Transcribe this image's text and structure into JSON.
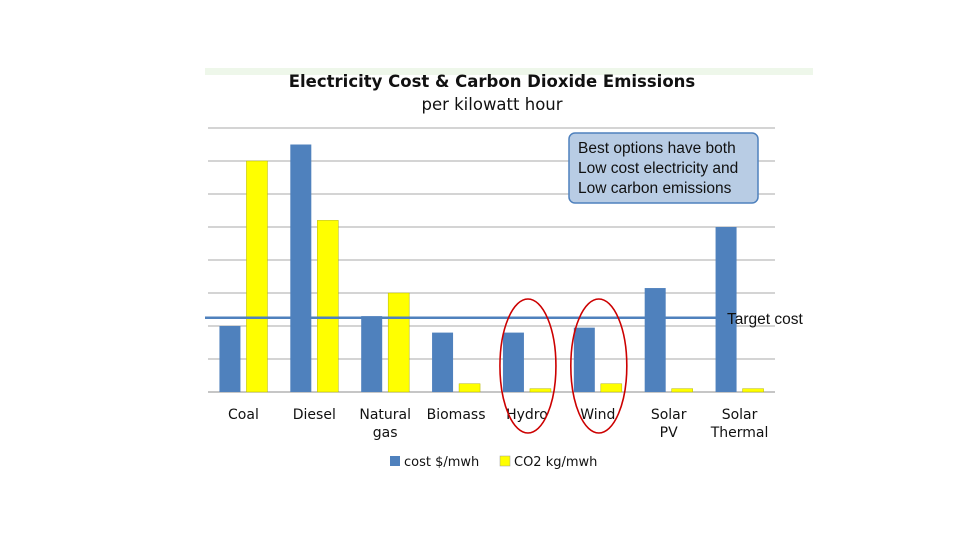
{
  "chart_data": {
    "type": "bar",
    "title": "Electricity Cost & Carbon Dioxide Emissions",
    "subtitle": "per kilowatt hour",
    "categories": [
      "Coal",
      "Diesel",
      "Natural gas",
      "Biomass",
      "Hydro",
      "Wind",
      "Solar PV",
      "Solar Thermal"
    ],
    "series": [
      {
        "name": "cost $/mwh",
        "color": "#4f81bd",
        "values": [
          20,
          75,
          23,
          18,
          18,
          19.5,
          31.5,
          50
        ]
      },
      {
        "name": "CO2 kg/mwh",
        "color": "#ffff00",
        "values": [
          70,
          52,
          30,
          2.5,
          1,
          2.5,
          1,
          1
        ]
      }
    ],
    "ylim": [
      0,
      80
    ],
    "grid": true,
    "legend_position": "bottom",
    "target_line": {
      "value": 22.5,
      "label": "Target cost",
      "color": "#4f81bd"
    },
    "callout": {
      "lines": [
        "Best options have both",
        "Low cost electricity and",
        "Low carbon emissions"
      ],
      "fill": "#b8cce4",
      "border": "#4f81bd"
    },
    "highlighted_categories": [
      "Hydro",
      "Wind"
    ],
    "highlight_color": "#cc0000"
  }
}
